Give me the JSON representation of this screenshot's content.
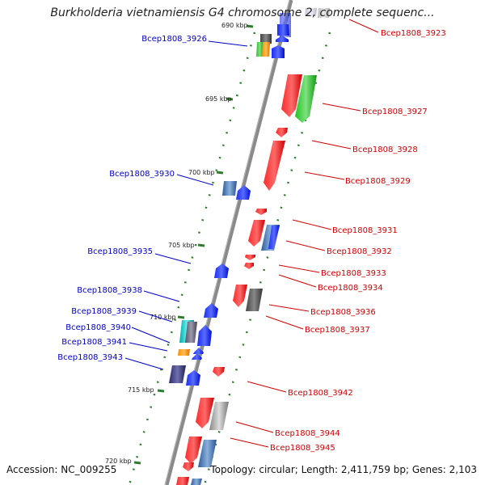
{
  "title": "Burkholderia vietnamiensis G4 chromosome 2, complete sequenc...",
  "footer": {
    "accession": "Accession: NC_009255",
    "topology": "Topology: circular; Length: 2,411,759 bp; Genes: 2,103"
  },
  "colors": {
    "forward_label": "#0000c8",
    "reverse_label": "#d00000",
    "backbone": "#777777",
    "tick": "#2e7d2e"
  },
  "kbp_labels": [
    "690 kbp",
    "695 kbp",
    "700 kbp",
    "705 kbp",
    "710 kbp",
    "715 kbp",
    "720 kbp"
  ],
  "forward_labels": [
    "Bcep1808_3926",
    "Bcep1808_3930",
    "Bcep1808_3935",
    "Bcep1808_3938",
    "Bcep1808_3939",
    "Bcep1808_3940",
    "Bcep1808_3941",
    "Bcep1808_3943"
  ],
  "reverse_labels": [
    "Bcep1808_3923",
    "Bcep1808_3927",
    "Bcep1808_3928",
    "Bcep1808_3929",
    "Bcep1808_3931",
    "Bcep1808_3932",
    "Bcep1808_3933",
    "Bcep1808_3934",
    "Bcep1808_3936",
    "Bcep1808_3937",
    "Bcep1808_3942",
    "Bcep1808_3944",
    "Bcep1808_3945"
  ]
}
